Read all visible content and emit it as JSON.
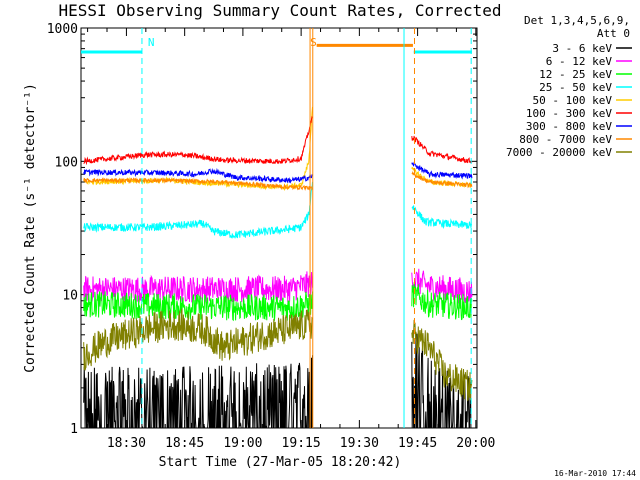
{
  "chart_data": {
    "type": "line",
    "title": "HESSI Observing Summary Count Rates, Corrected",
    "xlabel": "Start Time (27-Mar-05 18:20:42)",
    "ylabel": "Corrected Count Rate (s⁻¹ detector⁻¹)",
    "yscale": "log",
    "ylim": [
      1,
      1000
    ],
    "xlim_minutes": [
      18.3,
      120.3
    ],
    "x_tick_labels": [
      "18:30",
      "18:45",
      "19:00",
      "19:15",
      "19:30",
      "19:45",
      "20:00"
    ],
    "x_tick_minutes": [
      30,
      45,
      60,
      75,
      90,
      105,
      120
    ],
    "y_tick_labels": [
      "1",
      "10",
      "100",
      "1000"
    ],
    "y_tick_values": [
      1,
      10,
      100,
      1000
    ],
    "legend_header": [
      "Det 1,3,4,5,6,9,",
      "Att 0"
    ],
    "legend_position": "right",
    "data_gap_minutes": [
      78,
      103
    ],
    "series": [
      {
        "name": "3 - 6 keV",
        "color": "#000000",
        "base": 1.6,
        "noise": 0.45,
        "points": [
          [
            19,
            1.6
          ],
          [
            40,
            1.6
          ],
          [
            60,
            1.7
          ],
          [
            72,
            1.7
          ],
          [
            77,
            2.0
          ],
          [
            104,
            3.5
          ],
          [
            106,
            2.5
          ],
          [
            110,
            1.6
          ],
          [
            119,
            1.4
          ]
        ]
      },
      {
        "name": "6 - 12 keV",
        "color": "#ff00ff",
        "base": 11,
        "noise": 0.1,
        "points": [
          [
            19,
            11
          ],
          [
            40,
            11
          ],
          [
            60,
            11
          ],
          [
            72,
            11
          ],
          [
            77,
            12
          ],
          [
            104,
            13
          ],
          [
            108,
            11.5
          ],
          [
            119,
            10.5
          ]
        ]
      },
      {
        "name": "12 - 25 keV",
        "color": "#00ff00",
        "base": 8,
        "noise": 0.1,
        "points": [
          [
            19,
            8.5
          ],
          [
            40,
            8.2
          ],
          [
            60,
            8.0
          ],
          [
            72,
            8.0
          ],
          [
            77,
            8.5
          ],
          [
            104,
            10
          ],
          [
            108,
            8.5
          ],
          [
            119,
            8
          ]
        ]
      },
      {
        "name": "25 - 50 keV",
        "color": "#00ffff",
        "base": 32,
        "noise": 0.03,
        "points": [
          [
            19,
            32
          ],
          [
            36,
            32
          ],
          [
            50,
            34
          ],
          [
            52,
            30
          ],
          [
            58,
            28
          ],
          [
            72,
            31
          ],
          [
            75,
            32
          ],
          [
            77,
            40
          ],
          [
            78,
            75
          ],
          [
            104,
            45
          ],
          [
            107,
            35
          ],
          [
            119,
            33
          ]
        ]
      },
      {
        "name": "50 - 100 keV",
        "color": "#ffcc00",
        "base": 68,
        "noise": 0.02,
        "points": [
          [
            19,
            70
          ],
          [
            40,
            72
          ],
          [
            55,
            68
          ],
          [
            70,
            64
          ],
          [
            75,
            66
          ],
          [
            77,
            100
          ],
          [
            78,
            290
          ],
          [
            104,
            85
          ],
          [
            108,
            70
          ],
          [
            119,
            66
          ]
        ]
      },
      {
        "name": "100 - 300 keV",
        "color": "#ff0000",
        "base": 105,
        "noise": 0.02,
        "points": [
          [
            19,
            100
          ],
          [
            35,
            112
          ],
          [
            45,
            112
          ],
          [
            55,
            102
          ],
          [
            70,
            100
          ],
          [
            75,
            105
          ],
          [
            77,
            170
          ],
          [
            78,
            220
          ],
          [
            104,
            150
          ],
          [
            108,
            115
          ],
          [
            119,
            100
          ]
        ]
      },
      {
        "name": "300 - 800 keV",
        "color": "#0000ff",
        "base": 82,
        "noise": 0.02,
        "points": [
          [
            19,
            83
          ],
          [
            40,
            82
          ],
          [
            48,
            80
          ],
          [
            52,
            85
          ],
          [
            58,
            76
          ],
          [
            72,
            72
          ],
          [
            76,
            74
          ],
          [
            78,
            78
          ],
          [
            104,
            95
          ],
          [
            108,
            80
          ],
          [
            119,
            78
          ]
        ]
      },
      {
        "name": "800 - 7000 keV",
        "color": "#ff8800",
        "base": 72,
        "noise": 0.015,
        "points": [
          [
            19,
            72
          ],
          [
            40,
            72
          ],
          [
            55,
            70
          ],
          [
            72,
            64
          ],
          [
            76,
            64
          ],
          [
            78,
            62
          ],
          [
            104,
            80
          ],
          [
            108,
            70
          ],
          [
            119,
            66
          ]
        ]
      },
      {
        "name": "7000 - 20000 keV",
        "color": "#808000",
        "base": 4,
        "noise": 0.12,
        "points": [
          [
            19,
            3.5
          ],
          [
            25,
            4.5
          ],
          [
            35,
            5.5
          ],
          [
            42,
            6
          ],
          [
            50,
            5.5
          ],
          [
            55,
            4
          ],
          [
            65,
            5
          ],
          [
            72,
            5.5
          ],
          [
            77,
            6
          ],
          [
            104,
            5
          ],
          [
            108,
            4
          ],
          [
            112,
            2.5
          ],
          [
            119,
            2
          ]
        ]
      }
    ],
    "annotations": [
      {
        "text": "N",
        "minute": 34.5,
        "color": "#00ffff"
      },
      {
        "text": "S",
        "minute": 76.3,
        "color": "#ff8800"
      }
    ],
    "vertical_lines": [
      {
        "minute": 34.0,
        "color": "#00ffff",
        "style": "dashed"
      },
      {
        "minute": 77.3,
        "color": "#ff8800",
        "style": "solid"
      },
      {
        "minute": 78.0,
        "color": "#ff8800",
        "style": "solid"
      },
      {
        "minute": 101.5,
        "color": "#00ffff",
        "style": "solid"
      },
      {
        "minute": 104.2,
        "color": "#ff8800",
        "style": "dashed"
      },
      {
        "minute": 118.8,
        "color": "#00ffff",
        "style": "dashed"
      }
    ],
    "horizontal_bars": [
      {
        "from": 18.3,
        "to": 34.0,
        "value": 660,
        "color": "#00ffff"
      },
      {
        "from": 79.0,
        "to": 103.8,
        "value": 740,
        "color": "#ff8800"
      },
      {
        "from": 104.0,
        "to": 119.0,
        "value": 660,
        "color": "#00ffff"
      }
    ],
    "footer_timestamp": "16-Mar-2010 17:44"
  }
}
